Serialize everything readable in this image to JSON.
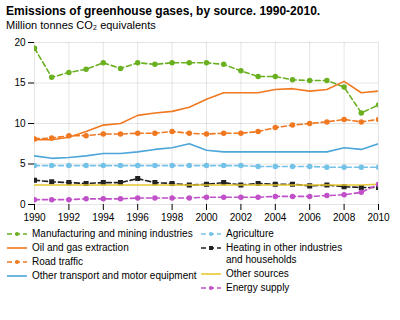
{
  "chart_data": {
    "type": "line",
    "title": "Emissions of greenhouse gases, by source. 1990-2010.",
    "subtitle": "Million tonnes CO₂ equivalents",
    "x": [
      1990,
      1991,
      1992,
      1993,
      1994,
      1995,
      1996,
      1997,
      1998,
      1999,
      2000,
      2001,
      2002,
      2003,
      2004,
      2005,
      2006,
      2007,
      2008,
      2009,
      2010
    ],
    "series": [
      {
        "name": "Manufacturing and mining industries",
        "color": "#6ab020",
        "line_style": "dashed",
        "marker": "circle",
        "values": [
          19.3,
          15.7,
          16.3,
          16.7,
          17.5,
          16.8,
          17.5,
          17.3,
          17.5,
          17.5,
          17.5,
          17.3,
          16.5,
          15.8,
          15.8,
          15.4,
          15.3,
          15.3,
          14.5,
          11.3,
          12.3
        ]
      },
      {
        "name": "Oil and gas extraction",
        "color": "#f07820",
        "line_style": "solid",
        "values": [
          8.0,
          8.0,
          8.3,
          9.0,
          9.8,
          10.0,
          11.0,
          11.3,
          11.5,
          12.0,
          13.0,
          13.8,
          13.8,
          13.8,
          14.2,
          14.3,
          14.0,
          14.2,
          15.2,
          13.8,
          14.0
        ]
      },
      {
        "name": "Road traffic",
        "color": "#f07820",
        "line_style": "dashed",
        "marker": "circle",
        "values": [
          8.1,
          8.2,
          8.5,
          8.5,
          8.7,
          8.7,
          8.8,
          8.8,
          9.0,
          8.8,
          8.7,
          8.8,
          8.8,
          9.0,
          9.5,
          9.8,
          10.0,
          10.2,
          10.5,
          10.2,
          10.5
        ]
      },
      {
        "name": "Other transport and motor equipment",
        "color": "#4da6d8",
        "line_style": "solid",
        "values": [
          6.0,
          5.7,
          5.8,
          6.0,
          6.3,
          6.3,
          6.5,
          6.8,
          7.0,
          7.5,
          6.7,
          6.5,
          6.5,
          6.5,
          6.5,
          6.5,
          6.5,
          6.5,
          7.0,
          6.8,
          7.5
        ]
      },
      {
        "name": "Agriculture",
        "color": "#74c2e8",
        "line_style": "dashed",
        "marker": "circle",
        "values": [
          4.8,
          4.8,
          4.8,
          4.8,
          4.8,
          4.8,
          4.8,
          4.8,
          4.8,
          4.8,
          4.8,
          4.8,
          4.8,
          4.7,
          4.7,
          4.7,
          4.7,
          4.6,
          4.6,
          4.6,
          4.6
        ]
      },
      {
        "name": "Heating in other industries\nand households",
        "color": "#222222",
        "line_style": "dashed",
        "marker": "square",
        "values": [
          3.0,
          2.8,
          2.7,
          2.6,
          2.7,
          2.7,
          3.2,
          2.7,
          2.6,
          2.4,
          2.5,
          2.7,
          2.4,
          2.6,
          2.5,
          2.5,
          2.3,
          2.4,
          2.2,
          2.1,
          2.1
        ]
      },
      {
        "name": "Other sources",
        "color": "#e8c830",
        "line_style": "solid",
        "values": [
          2.4,
          2.4,
          2.4,
          2.4,
          2.4,
          2.4,
          2.4,
          2.4,
          2.4,
          2.4,
          2.4,
          2.4,
          2.4,
          2.4,
          2.4,
          2.4,
          2.4,
          2.4,
          2.4,
          2.4,
          2.5
        ]
      },
      {
        "name": "Energy supply",
        "color": "#c050c8",
        "line_style": "dashed",
        "marker": "circle",
        "values": [
          0.6,
          0.6,
          0.6,
          0.7,
          0.7,
          0.7,
          0.8,
          0.8,
          0.8,
          0.8,
          0.9,
          0.9,
          0.9,
          0.9,
          1.0,
          1.0,
          1.0,
          1.1,
          1.2,
          1.5,
          2.5
        ]
      }
    ],
    "xlim": [
      1990,
      2010
    ],
    "ylim": [
      0,
      20
    ],
    "xticks": [
      1990,
      1992,
      1994,
      1996,
      1998,
      2000,
      2002,
      2004,
      2006,
      2008,
      2010
    ],
    "yticks": [
      0,
      5,
      10,
      15,
      20
    ],
    "grid": true,
    "legend": "bottom"
  }
}
